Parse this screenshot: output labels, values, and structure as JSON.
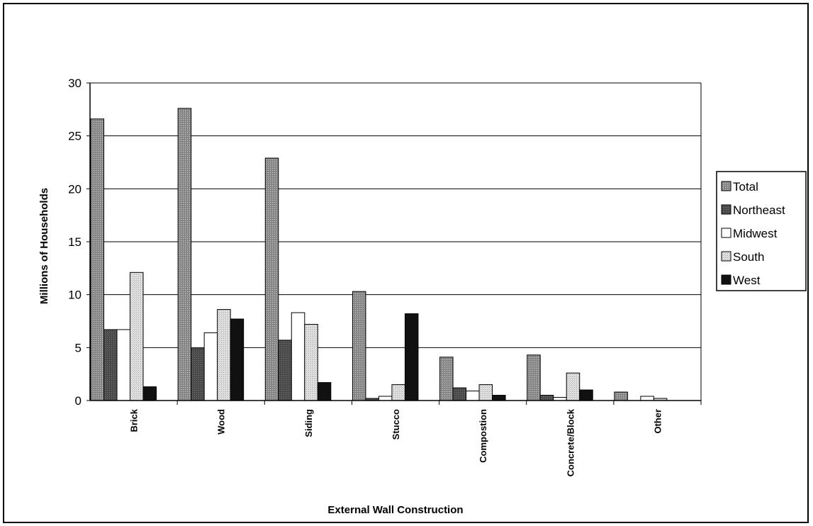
{
  "chart_data": {
    "type": "bar",
    "title": "",
    "xlabel": "External Wall Construction",
    "ylabel": "Millions of Households",
    "ylim": [
      0,
      30
    ],
    "yticks": [
      "0",
      "5",
      "10",
      "15",
      "20",
      "25",
      "30"
    ],
    "grid": true,
    "legend_position": "right",
    "categories": [
      "Brick",
      "Wood",
      "Siding",
      "Stucco",
      "Compostion",
      "Concrete/Block",
      "Other"
    ],
    "series": [
      {
        "name": "Total",
        "color": "#9a9a9a",
        "values": [
          26.6,
          27.6,
          22.9,
          10.3,
          4.1,
          4.3,
          0.8
        ]
      },
      {
        "name": "Northeast",
        "color": "#5a5a5a",
        "values": [
          6.7,
          4.9,
          5.7,
          0.2,
          1.2,
          0.5,
          0.0
        ]
      },
      {
        "name": "Midwest",
        "color": "#ffffff",
        "values": [
          6.7,
          6.4,
          8.3,
          0.4,
          0.9,
          0.3,
          0.4
        ]
      },
      {
        "name": "South",
        "color": "#d2d2d2",
        "values": [
          12.1,
          8.6,
          7.2,
          1.5,
          1.5,
          2.6,
          0.2
        ]
      },
      {
        "name": "West",
        "color": "#111111",
        "values": [
          1.3,
          7.7,
          1.7,
          8.2,
          0.5,
          1.0,
          0.0
        ]
      }
    ]
  }
}
